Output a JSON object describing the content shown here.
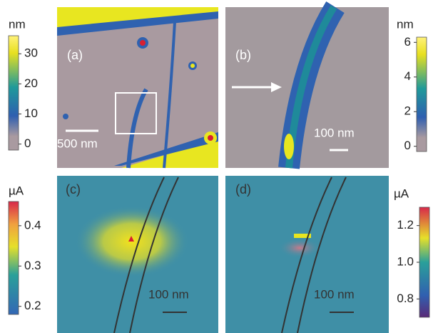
{
  "panels": [
    {
      "label": "(a)",
      "scale_bar": "500 nm",
      "colorbar": {
        "unit": "nm",
        "range": [
          -2,
          36
        ],
        "ticks": [
          0,
          10,
          20,
          30
        ]
      }
    },
    {
      "label": "(b)",
      "scale_bar": "100 nm",
      "colorbar": {
        "unit": "nm",
        "range": [
          -0.3,
          6.3
        ],
        "ticks": [
          0,
          2,
          4,
          6
        ]
      }
    },
    {
      "label": "(c)",
      "scale_bar": "100 nm",
      "colorbar": {
        "unit": "µA",
        "range": [
          0.18,
          0.46
        ],
        "ticks": [
          0.2,
          0.3,
          0.4
        ]
      }
    },
    {
      "label": "(d)",
      "scale_bar": "100 nm",
      "colorbar": {
        "unit": "µA",
        "range": [
          0.7,
          1.3
        ],
        "ticks": [
          0.8,
          {
            "value": 1,
            "label": "1.0"
          },
          1.2
        ]
      }
    }
  ]
}
